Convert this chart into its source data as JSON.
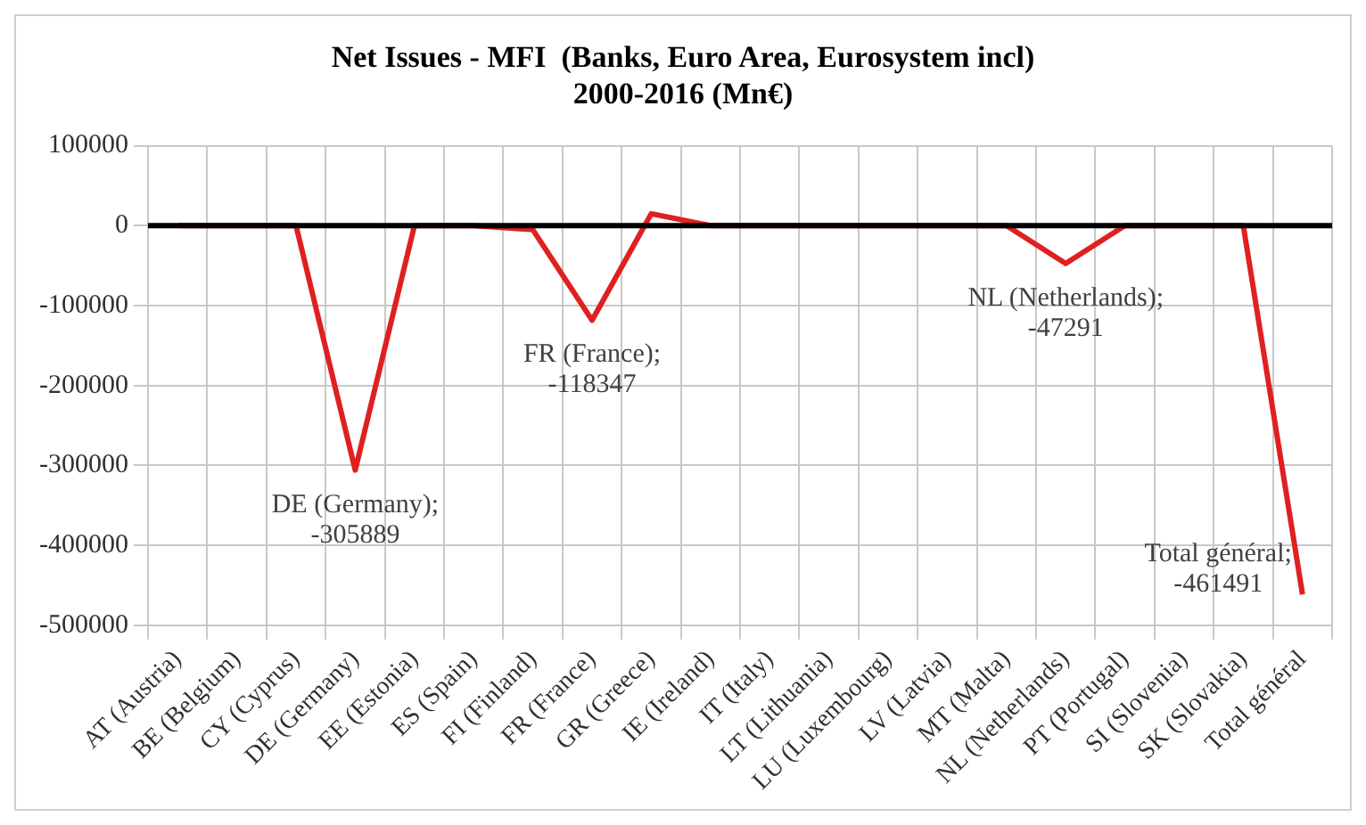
{
  "chart_data": {
    "type": "line",
    "title": "Net Issues - MFI  (Banks, Euro Area, Eurosystem incl)\n2000-2016 (Mn€)",
    "categories": [
      "AT (Austria)",
      "BE (Belgium)",
      "CY (Cyprus)",
      "DE (Germany)",
      "EE (Estonia)",
      "ES (Spain)",
      "FI (Finland)",
      "FR (France)",
      "GR (Greece)",
      "IE (Ireland)",
      "IT (Italy)",
      "LT (Lithuania)",
      "LU (Luxembourg)",
      "LV (Latvia)",
      "MT (Malta)",
      "NL (Netherlands)",
      "PT (Portugal)",
      "SI (Slovenia)",
      "SK (Slovakia)",
      "Total général"
    ],
    "series": [
      {
        "color": "#e02020",
        "values": [
          0,
          0,
          0,
          -305889,
          0,
          0,
          -5000,
          -118347,
          15000,
          0,
          0,
          0,
          0,
          0,
          0,
          -47291,
          0,
          0,
          0,
          -461491
        ],
        "value_labels": [
          null,
          null,
          null,
          "DE (Germany); -305889",
          null,
          null,
          null,
          "FR (France); -118347",
          null,
          null,
          null,
          null,
          null,
          null,
          null,
          "NL (Netherlands); -47291",
          null,
          null,
          null,
          "Total général; -461491"
        ]
      }
    ],
    "ylim": [
      -500000,
      100000
    ],
    "yticks": [
      -500000,
      -400000,
      -300000,
      -200000,
      -100000,
      0,
      100000
    ],
    "ref_lines": [
      {
        "axis": "y",
        "value": 0,
        "color": "#000000"
      }
    ],
    "grid": true,
    "legend": false
  }
}
